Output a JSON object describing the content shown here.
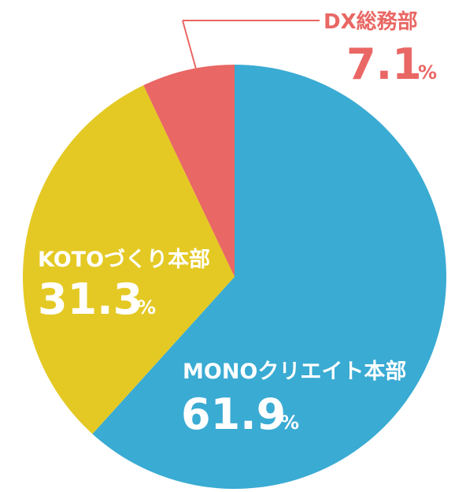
{
  "chart_data": {
    "type": "pie",
    "start_angle_deg": 0,
    "direction": "clockwise",
    "slices": [
      {
        "name": "MONOクリエイト本部",
        "value": 61.9,
        "value_label": "61.9",
        "unit": "%",
        "color": "#3aabd3",
        "text_color": "#ffffff"
      },
      {
        "name": "KOTOづくり本部",
        "value": 31.3,
        "value_label": "31.3",
        "unit": "%",
        "color": "#e4c924",
        "text_color": "#ffffff"
      },
      {
        "name": "DX総務部",
        "value": 7.1,
        "value_label": "7.1",
        "unit": "%",
        "color": "#e96764",
        "text_color": "#e96764"
      }
    ]
  }
}
